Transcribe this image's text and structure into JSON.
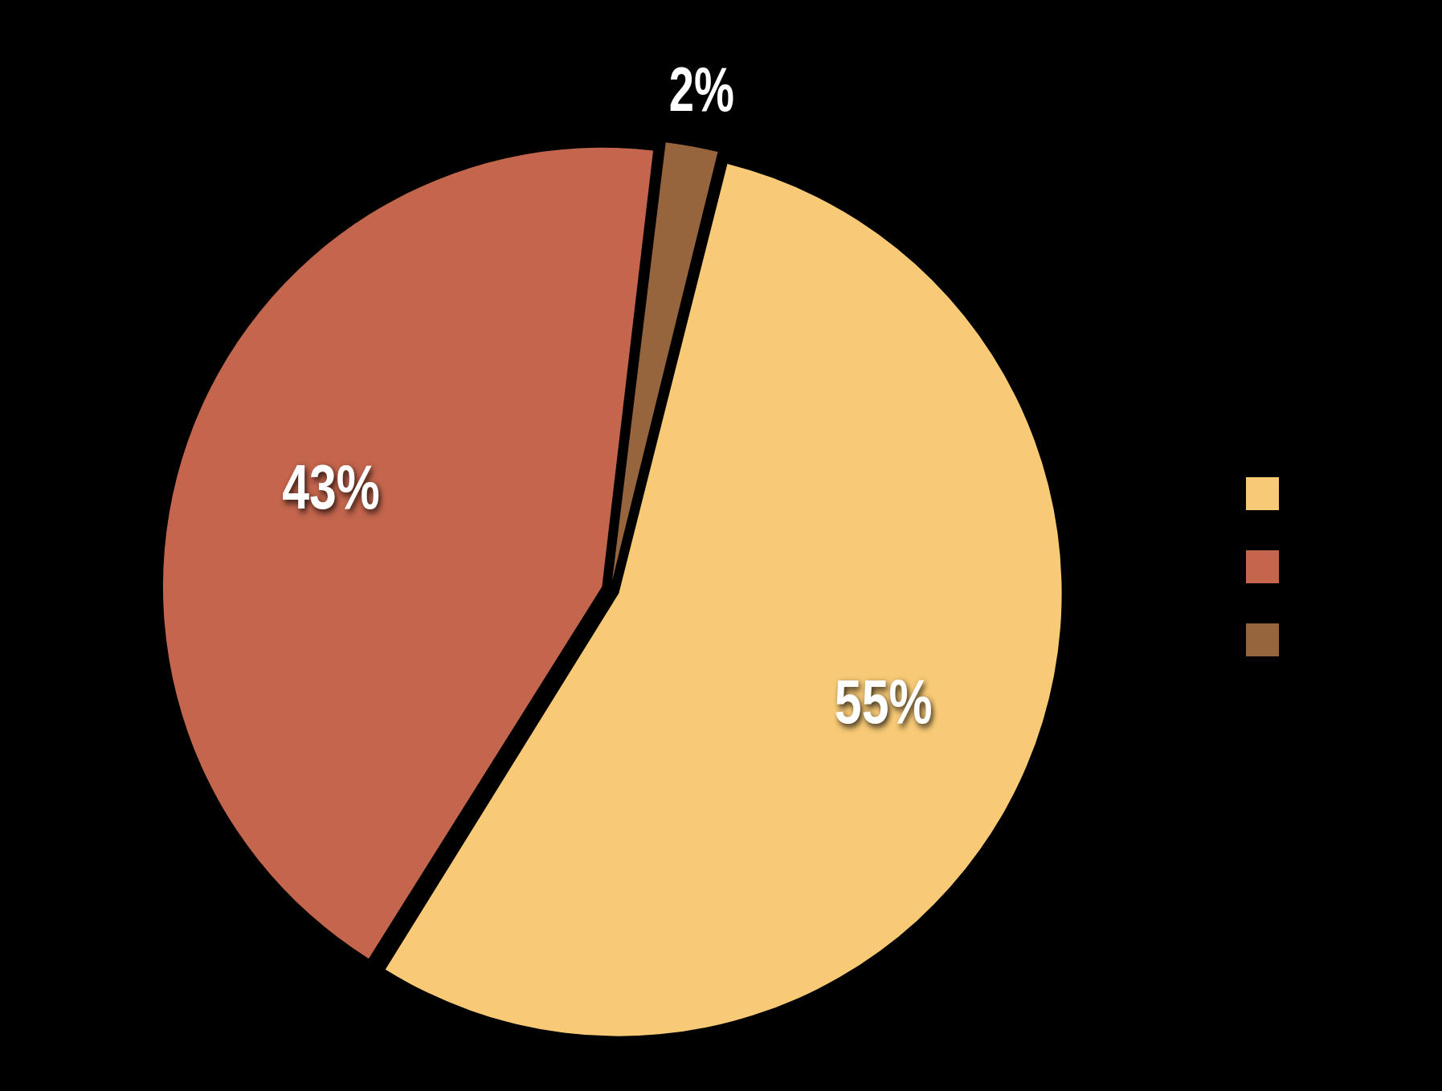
{
  "chart_data": {
    "type": "pie",
    "categories": [
      null,
      null,
      null
    ],
    "values": [
      55,
      43,
      2
    ],
    "colors": [
      "#f8ca76",
      "#c4654d",
      "#96653e"
    ],
    "value_labels": [
      "55%",
      "43%",
      "2%"
    ]
  }
}
